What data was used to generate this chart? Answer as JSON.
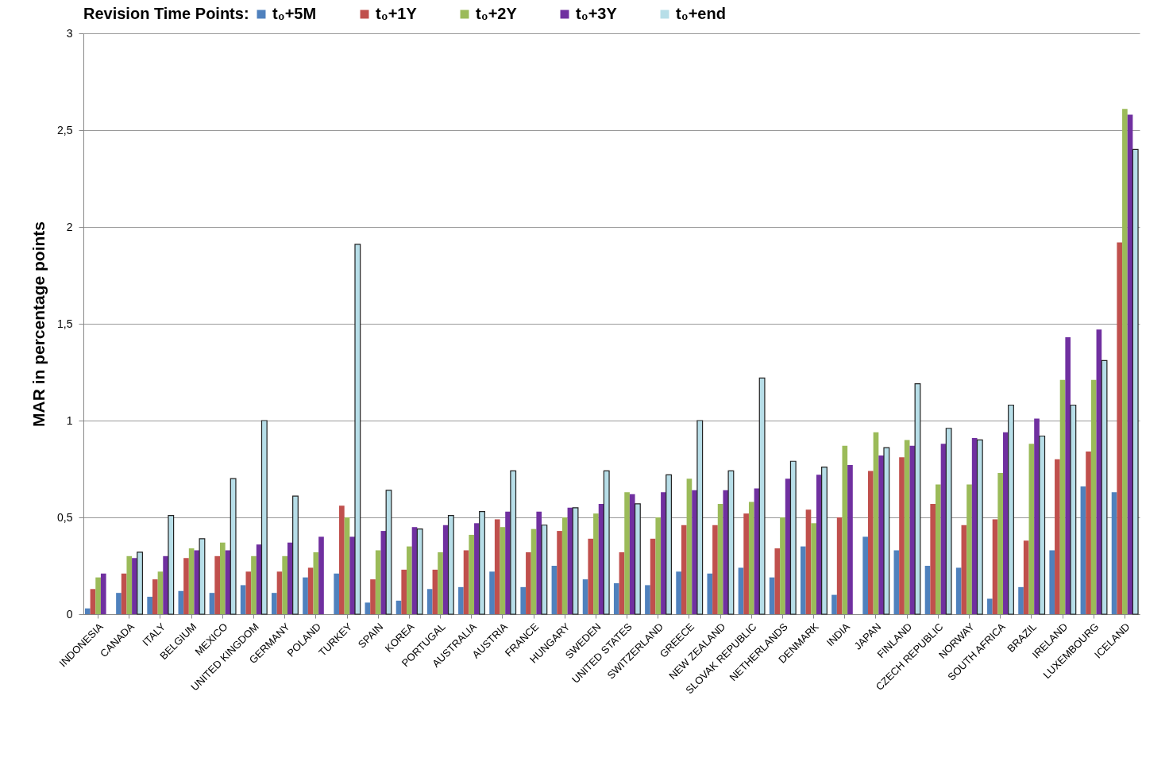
{
  "chart_data": {
    "type": "bar",
    "ylabel": "MAR in percentage points",
    "legend_title": "Revision Time Points:",
    "categories": [
      "INDONESIA",
      "CANADA",
      "ITALY",
      "BELGIUM",
      "MEXICO",
      "UNITED KINGDOM",
      "GERMANY",
      "POLAND",
      "TURKEY",
      "SPAIN",
      "KOREA",
      "PORTUGAL",
      "AUSTRALIA",
      "AUSTRIA",
      "FRANCE",
      "HUNGARY",
      "SWEDEN",
      "UNITED STATES",
      "SWITZERLAND",
      "GREECE",
      "NEW ZEALAND",
      "SLOVAK REPUBLIC",
      "NETHERLANDS",
      "DENMARK",
      "INDIA",
      "JAPAN",
      "FINLAND",
      "CZECH REPUBLIC",
      "NORWAY",
      "SOUTH AFRICA",
      "BRAZIL",
      "IRELAND",
      "LUXEMBOURG",
      "ICELAND"
    ],
    "series": [
      {
        "name": "t₀+5M",
        "color": "#4f81bd",
        "values": [
          0.03,
          0.11,
          0.09,
          0.12,
          0.11,
          0.15,
          0.11,
          0.19,
          0.21,
          0.06,
          0.07,
          0.13,
          0.14,
          0.22,
          0.14,
          0.25,
          0.18,
          0.16,
          0.15,
          0.22,
          0.21,
          0.24,
          0.19,
          0.35,
          0.1,
          0.4,
          0.33,
          0.25,
          0.24,
          0.08,
          0.14,
          0.33,
          0.66,
          0.63
        ]
      },
      {
        "name": "t₀+1Y",
        "color": "#c0504d",
        "values": [
          0.13,
          0.21,
          0.18,
          0.29,
          0.3,
          0.22,
          0.22,
          0.24,
          0.56,
          0.18,
          0.23,
          0.23,
          0.33,
          0.49,
          0.32,
          0.43,
          0.39,
          0.32,
          0.39,
          0.46,
          0.46,
          0.52,
          0.34,
          0.54,
          0.5,
          0.74,
          0.81,
          0.57,
          0.46,
          0.49,
          0.38,
          0.8,
          0.84,
          1.92
        ]
      },
      {
        "name": "t₀+2Y",
        "color": "#9bbb59",
        "values": [
          0.19,
          0.3,
          0.22,
          0.34,
          0.37,
          0.3,
          0.3,
          0.32,
          0.5,
          0.33,
          0.35,
          0.32,
          0.41,
          0.45,
          0.44,
          0.5,
          0.52,
          0.63,
          0.5,
          0.7,
          0.57,
          0.58,
          0.5,
          0.47,
          0.87,
          0.94,
          0.9,
          0.67,
          0.67,
          0.73,
          0.88,
          1.21,
          1.21,
          2.61
        ]
      },
      {
        "name": "t₀+3Y",
        "color": "#7030a0",
        "values": [
          0.21,
          0.29,
          0.3,
          0.33,
          0.33,
          0.36,
          0.37,
          0.4,
          0.4,
          0.43,
          0.45,
          0.46,
          0.47,
          0.53,
          0.53,
          0.55,
          0.57,
          0.62,
          0.63,
          0.64,
          0.64,
          0.65,
          0.7,
          0.72,
          0.77,
          0.82,
          0.87,
          0.88,
          0.91,
          0.94,
          1.01,
          1.43,
          1.47,
          2.58
        ]
      },
      {
        "name": "t₀+end",
        "color": "#b7dee8",
        "values": [
          null,
          0.32,
          0.51,
          0.39,
          0.7,
          1.0,
          0.61,
          null,
          1.91,
          0.64,
          0.44,
          0.51,
          0.53,
          0.74,
          0.46,
          0.55,
          0.74,
          0.57,
          0.72,
          1.0,
          0.74,
          1.22,
          0.79,
          0.76,
          null,
          0.86,
          1.19,
          0.96,
          0.9,
          1.08,
          0.92,
          1.08,
          1.31,
          2.4
        ]
      }
    ],
    "ylim": [
      0,
      3
    ],
    "yticks": [
      0,
      {
        "value": 0.5,
        "label": "0,5"
      },
      1,
      {
        "value": 1.5,
        "label": "1,5"
      },
      2,
      {
        "value": 2.5,
        "label": "2,5"
      },
      3
    ],
    "grid": "y",
    "legend": "top"
  }
}
